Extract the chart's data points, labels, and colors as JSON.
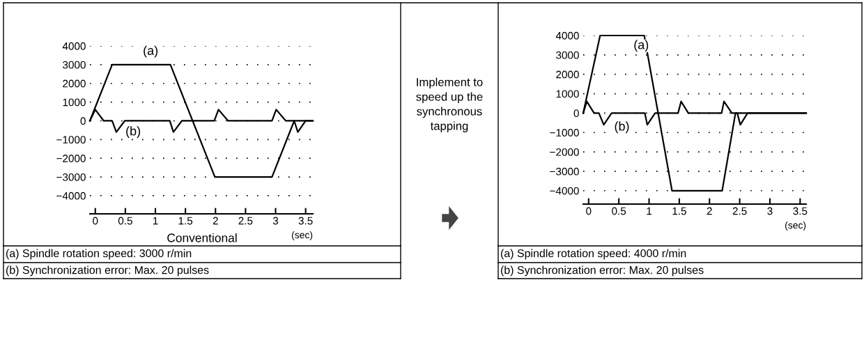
{
  "chart_data": [
    {
      "type": "line",
      "xlabel": "(sec)",
      "xlim": [
        -0.09,
        3.62
      ],
      "ylim": [
        -4970,
        4000
      ],
      "xticks": [
        0,
        0.5,
        1,
        1.5,
        2,
        2.5,
        3,
        3.5
      ],
      "yticks": [
        {
          "value": 4000,
          "label": "4000"
        },
        {
          "value": 3000,
          "label": "3000"
        },
        {
          "value": 2000,
          "label": "2000"
        },
        {
          "value": 1000,
          "label": "1000"
        },
        {
          "value": 0,
          "label": "0"
        },
        {
          "value": -1000,
          "label": "−1000"
        },
        {
          "value": -2000,
          "label": "−2000"
        },
        {
          "value": -3000,
          "label": "−3000"
        },
        {
          "value": -4000,
          "label": "−4000"
        }
      ],
      "grid": "y",
      "line_style": "solid",
      "series": [
        {
          "color": "#000000",
          "x": [
            -0.09,
            0.28,
            1.25,
            1.99,
            2.94,
            3.31,
            3.62
          ],
          "values": [
            0,
            3000,
            3000,
            -3000,
            -3000,
            0,
            0
          ]
        },
        {
          "color": "#000000",
          "x": [
            -0.09,
            0.0,
            0.14,
            0.28,
            0.35,
            0.49,
            1.24,
            1.3,
            1.44,
            1.98,
            2.05,
            2.21,
            2.94,
            3.01,
            3.17,
            3.31,
            3.37,
            3.5,
            3.62
          ],
          "values": [
            0,
            600,
            0,
            0,
            -600,
            0,
            0,
            -600,
            0,
            0,
            600,
            0,
            0,
            600,
            0,
            0,
            -600,
            0,
            0
          ]
        }
      ],
      "annotations": [
        {
          "text": "(a)",
          "x": 0.92,
          "y": 3700
        },
        {
          "text": "(b)",
          "x": 0.63,
          "y": -600
        },
        "Conventional",
        "(a) Spindle rotation speed: 3000 r/min",
        "(b) Synchronization error: Max. 20 pulses"
      ]
    },
    {
      "type": "other",
      "annotations": [
        "Implement to\nspeed up the\nsynchronous\ntapping"
      ]
    },
    {
      "type": "line",
      "xlabel": "(sec)",
      "xlim": [
        -0.09,
        3.6
      ],
      "ylim": [
        -4690,
        4000
      ],
      "xticks": [
        0,
        0.5,
        1,
        1.5,
        2,
        2.5,
        3,
        3.5
      ],
      "yticks": [
        {
          "value": 4000,
          "label": "4000"
        },
        {
          "value": 3000,
          "label": "3000"
        },
        {
          "value": 2000,
          "label": "2000"
        },
        {
          "value": 1000,
          "label": "1000"
        },
        {
          "value": 0,
          "label": "0"
        },
        {
          "value": -1000,
          "label": "−1000"
        },
        {
          "value": -2000,
          "label": "−2000"
        },
        {
          "value": -3000,
          "label": "−3000"
        },
        {
          "value": -4000,
          "label": "−4000"
        }
      ],
      "grid": "y",
      "line_style": "solid",
      "series": [
        {
          "color": "#000000",
          "x": [
            -0.09,
            0.19,
            0.92,
            1.38,
            2.21,
            2.43,
            3.6
          ],
          "values": [
            0,
            4000,
            4000,
            -4000,
            -4000,
            0,
            0
          ]
        },
        {
          "color": "#000000",
          "x": [
            -0.09,
            -0.03,
            0.09,
            0.17,
            0.25,
            0.38,
            0.93,
            0.97,
            1.1,
            1.48,
            1.53,
            1.65,
            2.2,
            2.24,
            2.37,
            2.46,
            2.51,
            2.63,
            3.6
          ],
          "values": [
            0,
            600,
            0,
            0,
            -600,
            0,
            0,
            -600,
            0,
            0,
            600,
            0,
            0,
            600,
            0,
            0,
            -600,
            0,
            0
          ]
        }
      ],
      "annotations": [
        {
          "text": "(a)",
          "x": 0.87,
          "y": 3470
        },
        {
          "text": "(b)",
          "x": 0.55,
          "y": -730
        },
        "(a) Spindle rotation speed: 4000 r/min",
        "(b) Synchronization error: Max. 20 pulses"
      ]
    }
  ]
}
